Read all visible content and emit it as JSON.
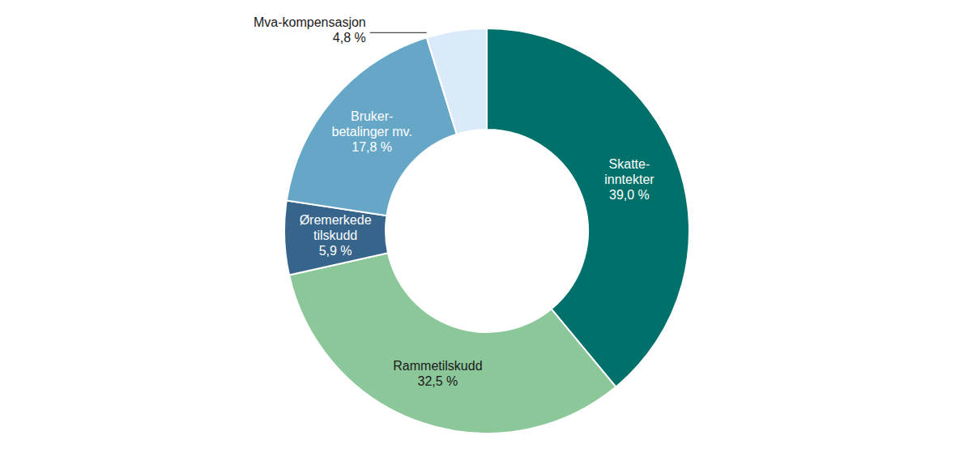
{
  "chart_data": {
    "type": "donut",
    "categories": [
      [
        "Skatte-",
        "inntekter"
      ],
      [
        "Rammetilskudd"
      ],
      [
        "Øremerkede",
        "tilskudd"
      ],
      [
        "Bruker-",
        "betalinger mv."
      ],
      [
        "Mva-kompensasjon"
      ]
    ],
    "values": [
      39.0,
      32.5,
      5.9,
      17.8,
      4.8
    ],
    "value_labels": [
      "39,0 %",
      "32,5 %",
      "5,9 %",
      "17,8 %",
      "4,8 %"
    ],
    "colors": [
      "#00706a",
      "#8cc79a",
      "#36648b",
      "#66a7c7",
      "#dbeaf8"
    ],
    "data_labels": true
  }
}
